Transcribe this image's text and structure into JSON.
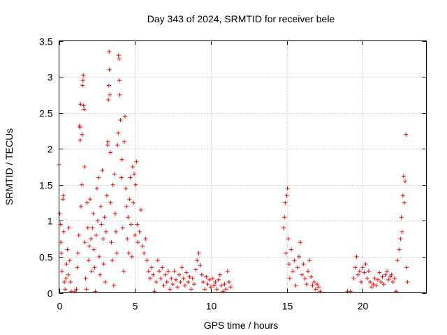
{
  "chart_data": {
    "type": "scatter",
    "title": "Day 343 of 2024, SRMTID for receiver bele",
    "xlabel": "GPS time / hours",
    "ylabel": "SRMTID / TECUs",
    "xlim": [
      0,
      24.2
    ],
    "ylim": [
      0,
      3.5
    ],
    "grid": true,
    "marker": "plus",
    "xticks": [
      {
        "value": 0,
        "label": "0"
      },
      {
        "value": 5,
        "label": "5"
      },
      {
        "value": 10,
        "label": "10"
      },
      {
        "value": 15,
        "label": "15"
      },
      {
        "value": 20,
        "label": "20"
      }
    ],
    "yticks": [
      {
        "value": 0,
        "label": "0"
      },
      {
        "value": 0.5,
        "label": "0.5"
      },
      {
        "value": 1,
        "label": "1"
      },
      {
        "value": 1.5,
        "label": "1.5"
      },
      {
        "value": 2,
        "label": "2"
      },
      {
        "value": 2.5,
        "label": "2.5"
      },
      {
        "value": 3,
        "label": "3"
      },
      {
        "value": 3.5,
        "label": "3.5"
      }
    ],
    "series": [
      {
        "name": "SRMTID",
        "color": "#ff0000",
        "points": [
          [
            0.0,
            1.78
          ],
          [
            0.05,
            1.1
          ],
          [
            0.1,
            0.95
          ],
          [
            0.12,
            0.7
          ],
          [
            0.15,
            0.55
          ],
          [
            0.2,
            0.3
          ],
          [
            0.25,
            1.3
          ],
          [
            0.28,
            1.35
          ],
          [
            0.3,
            0.85
          ],
          [
            0.35,
            0.15
          ],
          [
            0.4,
            0.05
          ],
          [
            0.45,
            0.2
          ],
          [
            0.5,
            0.4
          ],
          [
            0.55,
            0.6
          ],
          [
            0.6,
            0.25
          ],
          [
            0.65,
            0.9
          ],
          [
            0.7,
            0.45
          ],
          [
            0.75,
            0.15
          ],
          [
            0.8,
            0.02
          ],
          [
            1.05,
            0.02
          ],
          [
            1.15,
            0.05
          ],
          [
            1.2,
            0.35
          ],
          [
            1.25,
            0.55
          ],
          [
            1.3,
            0.8
          ],
          [
            1.35,
            2.32
          ],
          [
            1.38,
            2.3
          ],
          [
            1.4,
            2.12
          ],
          [
            1.42,
            2.62
          ],
          [
            1.45,
            1.2
          ],
          [
            1.5,
            1.5
          ],
          [
            1.52,
            2.2
          ],
          [
            1.55,
            2.88
          ],
          [
            1.58,
            2.95
          ],
          [
            1.6,
            3.02
          ],
          [
            1.62,
            2.6
          ],
          [
            1.65,
            2.55
          ],
          [
            1.68,
            1.75
          ],
          [
            1.7,
            0.7
          ],
          [
            1.75,
            0.2
          ],
          [
            1.8,
            0.05
          ],
          [
            1.85,
            1.25
          ],
          [
            1.9,
            0.9
          ],
          [
            1.95,
            0.45
          ],
          [
            2.0,
            0.65
          ],
          [
            2.05,
            1.3
          ],
          [
            2.1,
            0.75
          ],
          [
            2.15,
            0.3
          ],
          [
            2.2,
            0.9
          ],
          [
            2.25,
            1.1
          ],
          [
            2.3,
            0.6
          ],
          [
            2.35,
            0.35
          ],
          [
            2.4,
            0.02
          ],
          [
            2.45,
            0.8
          ],
          [
            2.5,
            1.45
          ],
          [
            2.55,
            1.0
          ],
          [
            2.6,
            1.6
          ],
          [
            2.65,
            0.5
          ],
          [
            2.7,
            0.25
          ],
          [
            2.75,
            1.2
          ],
          [
            2.8,
            0.95
          ],
          [
            2.85,
            1.7
          ],
          [
            2.9,
            0.75
          ],
          [
            2.95,
            0.4
          ],
          [
            3.0,
            1.05
          ],
          [
            3.05,
            0.15
          ],
          [
            3.1,
            0.85
          ],
          [
            3.15,
            1.35
          ],
          [
            3.2,
            2.05
          ],
          [
            3.22,
            2.1
          ],
          [
            3.25,
            2.68
          ],
          [
            3.28,
            2.88
          ],
          [
            3.3,
            3.35
          ],
          [
            3.32,
            3.1
          ],
          [
            3.35,
            2.75
          ],
          [
            3.38,
            1.95
          ],
          [
            3.4,
            1.25
          ],
          [
            3.45,
            0.7
          ],
          [
            3.5,
            0.45
          ],
          [
            3.55,
            1.5
          ],
          [
            3.6,
            0.1
          ],
          [
            3.65,
            1.65
          ],
          [
            3.7,
            1.1
          ],
          [
            3.75,
            0.85
          ],
          [
            3.8,
            0.55
          ],
          [
            3.85,
            2.05
          ],
          [
            3.9,
            2.22
          ],
          [
            3.92,
            3.3
          ],
          [
            3.95,
            3.25
          ],
          [
            3.98,
            2.95
          ],
          [
            4.0,
            2.75
          ],
          [
            4.05,
            2.4
          ],
          [
            4.1,
            1.6
          ],
          [
            4.15,
            1.85
          ],
          [
            4.2,
            0.9
          ],
          [
            4.25,
            0.3
          ],
          [
            4.3,
            2.1
          ],
          [
            4.35,
            2.45
          ],
          [
            4.4,
            1.45
          ],
          [
            4.45,
            1.2
          ],
          [
            4.5,
            0.75
          ],
          [
            4.55,
            1.05
          ],
          [
            4.6,
            0.55
          ],
          [
            4.65,
            1.3
          ],
          [
            4.7,
            1.6
          ],
          [
            4.75,
            0.95
          ],
          [
            4.8,
            0.5
          ],
          [
            4.85,
            1.75
          ],
          [
            4.9,
            1.25
          ],
          [
            4.95,
            1.65
          ],
          [
            5.0,
            0.8
          ],
          [
            5.05,
            1.5
          ],
          [
            5.1,
            1.82
          ],
          [
            5.15,
            0.95
          ],
          [
            5.2,
            0.7
          ],
          [
            5.3,
            0.85
          ],
          [
            5.4,
            1.15
          ],
          [
            5.5,
            0.65
          ],
          [
            5.6,
            0.55
          ],
          [
            5.7,
            0.75
          ],
          [
            5.8,
            0.45
          ],
          [
            5.9,
            0.3
          ],
          [
            6.0,
            0.2
          ],
          [
            6.1,
            0.35
          ],
          [
            6.2,
            0.25
          ],
          [
            6.3,
            0.02
          ],
          [
            6.4,
            0.15
          ],
          [
            6.5,
            0.45
          ],
          [
            6.6,
            0.3
          ],
          [
            6.7,
            0.2
          ],
          [
            6.8,
            0.35
          ],
          [
            6.9,
            0.1
          ],
          [
            7.0,
            0.25
          ],
          [
            7.1,
            0.15
          ],
          [
            7.2,
            0.3
          ],
          [
            7.3,
            0.05
          ],
          [
            7.4,
            0.2
          ],
          [
            7.5,
            0.12
          ],
          [
            7.6,
            0.3
          ],
          [
            7.7,
            0.18
          ],
          [
            7.8,
            0.08
          ],
          [
            7.9,
            0.25
          ],
          [
            8.0,
            0.15
          ],
          [
            8.1,
            0.35
          ],
          [
            8.2,
            0.2
          ],
          [
            8.3,
            0.1
          ],
          [
            8.4,
            0.28
          ],
          [
            8.5,
            0.15
          ],
          [
            8.6,
            0.22
          ],
          [
            8.7,
            0.05
          ],
          [
            8.8,
            0.2
          ],
          [
            8.9,
            0.12
          ],
          [
            9.0,
            0.32
          ],
          [
            9.1,
            0.45
          ],
          [
            9.2,
            0.55
          ],
          [
            9.3,
            0.38
          ],
          [
            9.4,
            0.25
          ],
          [
            9.5,
            0.15
          ],
          [
            9.6,
            0.05
          ],
          [
            9.7,
            0.22
          ],
          [
            9.8,
            0.12
          ],
          [
            9.9,
            0.18
          ],
          [
            10.0,
            0.08
          ],
          [
            10.1,
            0.2
          ],
          [
            10.2,
            0.1
          ],
          [
            10.3,
            0.15
          ],
          [
            10.4,
            0.05
          ],
          [
            10.5,
            0.18
          ],
          [
            10.6,
            0.25
          ],
          [
            10.7,
            0.1
          ],
          [
            10.8,
            0.02
          ],
          [
            10.9,
            0.12
          ],
          [
            11.0,
            0.05
          ],
          [
            11.1,
            0.3
          ],
          [
            11.2,
            0.15
          ],
          [
            11.3,
            0.08
          ],
          [
            14.8,
            0.9
          ],
          [
            14.85,
            1.05
          ],
          [
            14.9,
            1.25
          ],
          [
            14.95,
            0.55
          ],
          [
            15.0,
            1.35
          ],
          [
            15.05,
            1.45
          ],
          [
            15.1,
            0.75
          ],
          [
            15.15,
            0.4
          ],
          [
            15.2,
            0.2
          ],
          [
            15.3,
            0.6
          ],
          [
            15.4,
            0.3
          ],
          [
            15.5,
            0.45
          ],
          [
            15.6,
            0.1
          ],
          [
            15.7,
            0.35
          ],
          [
            15.8,
            0.5
          ],
          [
            15.9,
            0.7
          ],
          [
            16.0,
            0.25
          ],
          [
            16.1,
            0.4
          ],
          [
            16.2,
            0.2
          ],
          [
            16.3,
            0.12
          ],
          [
            16.4,
            0.3
          ],
          [
            16.5,
            0.45
          ],
          [
            16.6,
            0.22
          ],
          [
            16.7,
            0.1
          ],
          [
            16.8,
            0.15
          ],
          [
            16.9,
            0.05
          ],
          [
            17.0,
            0.12
          ],
          [
            17.1,
            0.08
          ],
          [
            17.2,
            0.02
          ],
          [
            19.0,
            0.02
          ],
          [
            19.2,
            0.02
          ],
          [
            19.4,
            0.2
          ],
          [
            19.5,
            0.35
          ],
          [
            19.6,
            0.5
          ],
          [
            19.7,
            0.25
          ],
          [
            19.8,
            0.3
          ],
          [
            19.9,
            0.15
          ],
          [
            20.0,
            0.35
          ],
          [
            20.1,
            0.28
          ],
          [
            20.2,
            0.4
          ],
          [
            20.3,
            0.2
          ],
          [
            20.4,
            0.3
          ],
          [
            20.5,
            0.15
          ],
          [
            20.6,
            0.08
          ],
          [
            20.7,
            0.12
          ],
          [
            20.8,
            0.2
          ],
          [
            20.9,
            0.1
          ],
          [
            21.0,
            0.18
          ],
          [
            21.1,
            0.28
          ],
          [
            21.2,
            0.15
          ],
          [
            21.3,
            0.22
          ],
          [
            21.4,
            0.12
          ],
          [
            21.5,
            0.25
          ],
          [
            21.6,
            0.3
          ],
          [
            21.7,
            0.18
          ],
          [
            21.8,
            0.22
          ],
          [
            21.9,
            0.25
          ],
          [
            22.0,
            0.15
          ],
          [
            22.1,
            0.2
          ],
          [
            22.2,
            0.02
          ],
          [
            22.3,
            0.45
          ],
          [
            22.4,
            0.6
          ],
          [
            22.5,
            0.75
          ],
          [
            22.55,
            1.05
          ],
          [
            22.6,
            0.85
          ],
          [
            22.65,
            1.35
          ],
          [
            22.7,
            1.62
          ],
          [
            22.75,
            1.25
          ],
          [
            22.8,
            1.55
          ],
          [
            22.85,
            2.2
          ],
          [
            22.9,
            0.35
          ],
          [
            22.95,
            0.15
          ]
        ]
      }
    ]
  }
}
